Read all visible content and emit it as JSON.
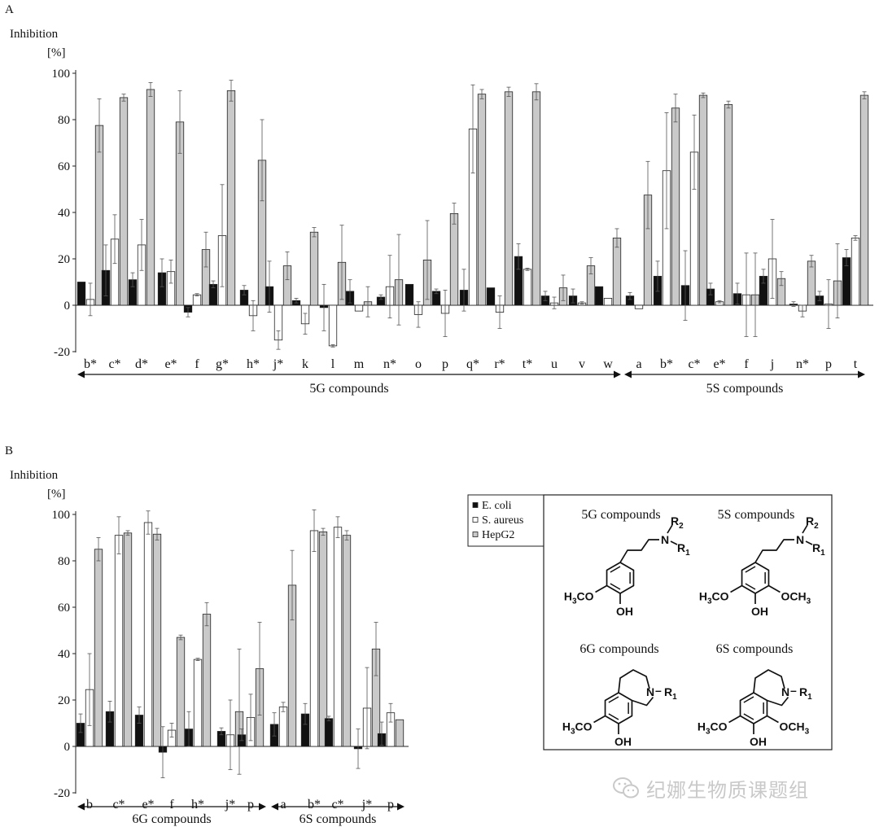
{
  "colors": {
    "ecoli": "#111111",
    "saureus": "#ffffff",
    "hepg2": "#c9c9c9",
    "axis": "#222222"
  },
  "legend": {
    "entries": [
      "E. coli",
      "S. aureus",
      "HepG2"
    ]
  },
  "chart_data": [
    {
      "type": "bar",
      "panel_label": "A",
      "ylabel": "Inhibition",
      "yunit": "[%]",
      "ylim": [
        -20,
        100
      ],
      "yticks": [
        -20,
        0,
        20,
        40,
        60,
        80,
        100
      ],
      "categories": [
        "b*",
        "c*",
        "d*",
        "e*",
        "f",
        "g*",
        "h*",
        "j*",
        "k",
        "l",
        "m",
        "n*",
        "o",
        "p",
        "q*",
        "r*",
        "t*",
        "u",
        "v",
        "w",
        "a",
        "b*",
        "c*",
        "e*",
        "f",
        "j",
        "n*",
        "p",
        "t"
      ],
      "groups": [
        {
          "label": "5G compounds",
          "start": 0,
          "end": 19
        },
        {
          "label": "5S compounds",
          "start": 20,
          "end": 28
        }
      ],
      "series": [
        {
          "name": "E. coli",
          "values": [
            10,
            15,
            11,
            14,
            -3,
            9,
            6.5,
            8,
            2,
            -1,
            6,
            3.5,
            9,
            6,
            6.5,
            7.5,
            21,
            4,
            4,
            8,
            4,
            12.5,
            8.5,
            7,
            5,
            12.5,
            0.5,
            4,
            20.5
          ],
          "errors": [
            0,
            11,
            3,
            6,
            2,
            1.5,
            2,
            11,
            1,
            10,
            5,
            1,
            0,
            1,
            9,
            0,
            5.5,
            2,
            3,
            0,
            1.5,
            6.5,
            15,
            2.5,
            4.5,
            3,
            1,
            2,
            3.5
          ]
        },
        {
          "name": "S. aureus",
          "values": [
            2.5,
            28.5,
            26,
            14.5,
            4.5,
            30,
            -4.5,
            -15,
            -8,
            -17.5,
            -2.5,
            8,
            -4,
            -3.5,
            76,
            -3,
            15.5,
            1,
            1,
            3,
            -1.5,
            58,
            66,
            1.5,
            4.5,
            20,
            -2.5,
            0.5,
            29
          ],
          "errors": [
            7,
            10.5,
            11,
            5,
            0.5,
            22,
            6.5,
            4,
            4.5,
            0.5,
            0,
            13.5,
            5.5,
            10,
            19,
            7,
            0.5,
            2.5,
            0.5,
            0,
            0,
            25,
            16,
            0.5,
            18,
            17,
            2.5,
            10.5,
            1
          ]
        },
        {
          "name": "HepG2",
          "values": [
            77.5,
            89.5,
            93,
            79,
            24,
            92.5,
            62.5,
            17,
            31.5,
            18.5,
            1.5,
            11,
            19.5,
            39.5,
            91,
            92,
            92,
            7.5,
            17,
            29,
            47.5,
            85,
            90.5,
            86.5,
            4.5,
            11.5,
            19,
            10.5,
            90.5
          ],
          "errors": [
            11.5,
            1.5,
            3,
            13.5,
            7.5,
            4.5,
            17.5,
            6,
            2,
            16,
            6.5,
            19.5,
            17,
            4.5,
            2,
            2,
            3.5,
            5.5,
            3.5,
            4,
            14.5,
            6,
            1,
            1.5,
            18,
            3,
            2.5,
            16,
            1.5
          ]
        }
      ]
    },
    {
      "type": "bar",
      "panel_label": "B",
      "ylabel": "Inhibition",
      "yunit": "[%]",
      "ylim": [
        -20,
        100
      ],
      "yticks": [
        -20,
        0,
        20,
        40,
        60,
        80,
        100
      ],
      "categories": [
        "b",
        "c*",
        "e*",
        "f",
        "h*",
        "j*",
        "p",
        "a",
        "b*",
        "c*",
        "j*",
        "p"
      ],
      "groups": [
        {
          "label": "6G compounds",
          "start": 0,
          "end": 6
        },
        {
          "label": "6S compounds",
          "start": 7,
          "end": 11
        }
      ],
      "series": [
        {
          "name": "E. coli",
          "values": [
            10,
            15,
            13.5,
            -2.5,
            7.5,
            6.5,
            5,
            9.5,
            14,
            12,
            -1,
            5.5
          ],
          "errors": [
            4,
            4.5,
            3.5,
            11,
            7.5,
            1.5,
            2.5,
            5,
            4.5,
            1,
            8.5,
            5
          ]
        },
        {
          "name": "S. aureus",
          "values": [
            24.5,
            91,
            96.5,
            7,
            37.5,
            5,
            12.5,
            17,
            93,
            94.5,
            16.5,
            14.5
          ],
          "errors": [
            15.5,
            8,
            5,
            3,
            0.5,
            15,
            10,
            2,
            9,
            4.5,
            17.5,
            4
          ]
        },
        {
          "name": "HepG2",
          "values": [
            85,
            92,
            91.5,
            47,
            57,
            15,
            33.5,
            69.5,
            92.5,
            91,
            42,
            11.5
          ],
          "errors": [
            5,
            1,
            2.5,
            1,
            5,
            27,
            20,
            15,
            1.5,
            2,
            11.5,
            0
          ]
        }
      ]
    }
  ],
  "structures": [
    {
      "title": "5G compounds",
      "labels": {
        "n": "N",
        "r1": "R",
        "r1sub": "1",
        "r2": "R",
        "r2sub": "2",
        "ome": "H",
        "omesub": "3",
        "omerest": "CO",
        "oh": "OH"
      }
    },
    {
      "title": "5S compounds",
      "labels": {
        "n": "N",
        "r1": "R",
        "r1sub": "1",
        "r2": "R",
        "r2sub": "2",
        "ome": "H",
        "omesub": "3",
        "omerest": "CO",
        "oh": "OH",
        "ome2": "OCH",
        "ome2sub": "3"
      }
    },
    {
      "title": "6G compounds",
      "labels": {
        "n": "N",
        "dash": "–",
        "r1": "R",
        "r1sub": "1",
        "ome": "H",
        "omesub": "3",
        "omerest": "CO",
        "oh": "OH"
      }
    },
    {
      "title": "6S compounds",
      "labels": {
        "n": "N",
        "dash": "–",
        "r1": "R",
        "r1sub": "1",
        "ome": "H",
        "omesub": "3",
        "omerest": "CO",
        "oh": "OH",
        "ome2": "OCH",
        "ome2sub": "3"
      }
    }
  ],
  "watermark": {
    "text": "纪娜生物质课题组"
  }
}
